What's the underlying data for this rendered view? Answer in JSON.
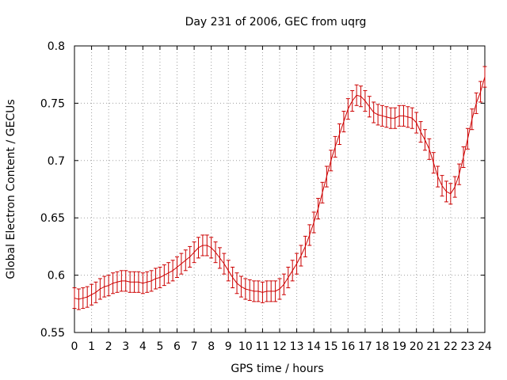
{
  "chart_data": {
    "type": "line",
    "title": "Day 231 of 2006, GEC from uqrg",
    "xlabel": "GPS time / hours",
    "ylabel": "Global Electron Content / GECUs",
    "xlim": [
      0,
      24
    ],
    "ylim": [
      0.55,
      0.8
    ],
    "xticks": [
      0,
      1,
      2,
      3,
      4,
      5,
      6,
      7,
      8,
      9,
      10,
      11,
      12,
      13,
      14,
      15,
      16,
      17,
      18,
      19,
      20,
      21,
      22,
      23,
      24
    ],
    "yticks": [
      "0.55",
      "0.6",
      "0.65",
      "0.7",
      "0.75",
      "0.8"
    ],
    "grid": true,
    "series": [
      {
        "color": "#cc0000",
        "error_bar": 0.009,
        "x": [
          0,
          0.25,
          0.5,
          0.75,
          1,
          1.25,
          1.5,
          1.75,
          2,
          2.25,
          2.5,
          2.75,
          3,
          3.25,
          3.5,
          3.75,
          4,
          4.25,
          4.5,
          4.75,
          5,
          5.25,
          5.5,
          5.75,
          6,
          6.25,
          6.5,
          6.75,
          7,
          7.25,
          7.5,
          7.75,
          8,
          8.25,
          8.5,
          8.75,
          9,
          9.25,
          9.5,
          9.75,
          10,
          10.25,
          10.5,
          10.75,
          11,
          11.25,
          11.5,
          11.75,
          12,
          12.25,
          12.5,
          12.75,
          13,
          13.25,
          13.5,
          13.75,
          14,
          14.25,
          14.5,
          14.75,
          15,
          15.25,
          15.5,
          15.75,
          16,
          16.25,
          16.5,
          16.75,
          17,
          17.25,
          17.5,
          17.75,
          18,
          18.25,
          18.5,
          18.75,
          19,
          19.25,
          19.5,
          19.75,
          20,
          20.25,
          20.5,
          20.75,
          21,
          21.25,
          21.5,
          21.75,
          22,
          22.25,
          22.5,
          22.75,
          23,
          23.25,
          23.5,
          23.75,
          24
        ],
        "y": [
          0.58,
          0.579,
          0.58,
          0.581,
          0.583,
          0.585,
          0.588,
          0.59,
          0.591,
          0.593,
          0.594,
          0.595,
          0.595,
          0.594,
          0.594,
          0.594,
          0.593,
          0.594,
          0.595,
          0.597,
          0.598,
          0.6,
          0.602,
          0.604,
          0.607,
          0.61,
          0.613,
          0.616,
          0.62,
          0.624,
          0.626,
          0.626,
          0.624,
          0.62,
          0.615,
          0.61,
          0.604,
          0.598,
          0.593,
          0.59,
          0.588,
          0.587,
          0.586,
          0.586,
          0.585,
          0.586,
          0.586,
          0.586,
          0.588,
          0.592,
          0.598,
          0.604,
          0.61,
          0.617,
          0.625,
          0.635,
          0.646,
          0.658,
          0.672,
          0.686,
          0.7,
          0.712,
          0.723,
          0.734,
          0.745,
          0.752,
          0.757,
          0.756,
          0.752,
          0.747,
          0.742,
          0.74,
          0.739,
          0.738,
          0.737,
          0.737,
          0.739,
          0.739,
          0.738,
          0.737,
          0.733,
          0.725,
          0.718,
          0.71,
          0.698,
          0.686,
          0.678,
          0.673,
          0.671,
          0.677,
          0.688,
          0.703,
          0.719,
          0.736,
          0.75,
          0.76,
          0.773
        ]
      }
    ]
  }
}
